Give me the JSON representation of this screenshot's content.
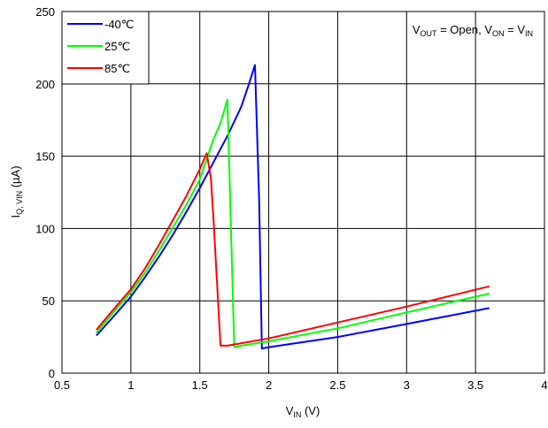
{
  "chart_data": {
    "type": "line",
    "xlabel": {
      "main": "V",
      "sub": "IN",
      "unit": " (V)"
    },
    "ylabel": {
      "main": "I",
      "sub": "Q, VIN",
      "unit": " (µA)"
    },
    "xlim": [
      0.5,
      4
    ],
    "ylim": [
      0,
      250
    ],
    "xticks": [
      0.5,
      1,
      1.5,
      2,
      2.5,
      3,
      3.5,
      4
    ],
    "yticks": [
      0,
      50,
      100,
      150,
      200,
      250
    ],
    "xtick_labels": [
      "0.5",
      "1",
      "1.5",
      "2",
      "2.5",
      "3",
      "3.5",
      "4"
    ],
    "ytick_labels": [
      "0",
      "50",
      "100",
      "150",
      "200",
      "250"
    ],
    "grid": true,
    "legend_position": "top-left",
    "annotation": {
      "parts": [
        {
          "text": "V"
        },
        {
          "text": "OUT",
          "sub": true
        },
        {
          "text": " = Open, V"
        },
        {
          "text": "ON",
          "sub": true
        },
        {
          "text": " = V"
        },
        {
          "text": "IN",
          "sub": true
        }
      ]
    },
    "series": [
      {
        "name": "-40℃",
        "color": "#0000ff",
        "x": [
          0.75,
          0.9,
          1.0,
          1.1,
          1.2,
          1.3,
          1.4,
          1.5,
          1.6,
          1.7,
          1.8,
          1.85,
          1.9,
          1.93,
          1.95,
          2.0,
          2.5,
          3.0,
          3.6
        ],
        "y": [
          26,
          42,
          53,
          66,
          80,
          95,
          111,
          128,
          146,
          164,
          184,
          198,
          213,
          120,
          17,
          18,
          25,
          34,
          45
        ]
      },
      {
        "name": "25℃",
        "color": "#00ff00",
        "x": [
          0.75,
          0.9,
          1.0,
          1.1,
          1.2,
          1.3,
          1.4,
          1.5,
          1.6,
          1.65,
          1.7,
          1.72,
          1.75,
          1.8,
          2.0,
          2.5,
          3.0,
          3.6
        ],
        "y": [
          28,
          45,
          56,
          69,
          84,
          100,
          116,
          134,
          162,
          173,
          189,
          120,
          18,
          19,
          22,
          31,
          42,
          55
        ]
      },
      {
        "name": "85℃",
        "color": "#ff0000",
        "x": [
          0.75,
          0.9,
          1.0,
          1.1,
          1.2,
          1.3,
          1.4,
          1.5,
          1.55,
          1.58,
          1.6,
          1.65,
          1.7,
          2.0,
          2.5,
          3.0,
          3.6
        ],
        "y": [
          30,
          47,
          58,
          72,
          88,
          105,
          122,
          141,
          152,
          135,
          105,
          19,
          19,
          24,
          35,
          46,
          60
        ]
      }
    ]
  }
}
